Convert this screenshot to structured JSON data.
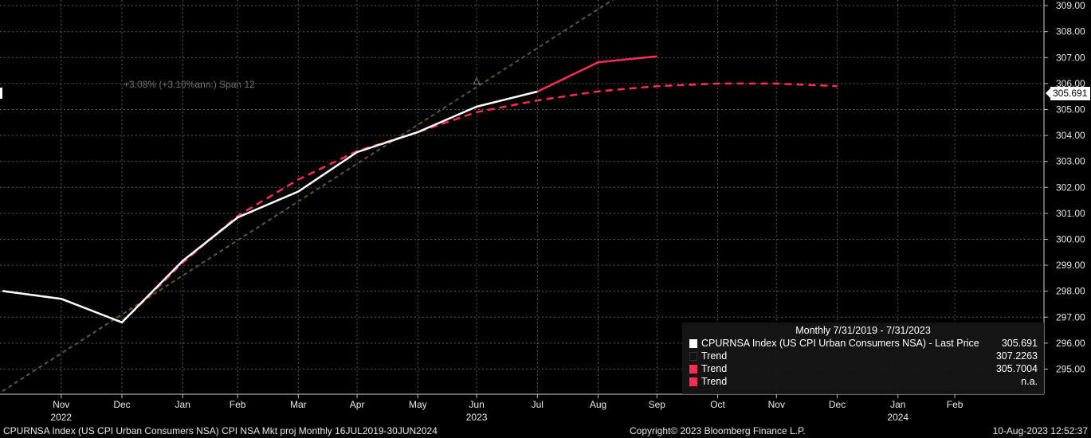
{
  "chart_data": {
    "type": "line",
    "x": [
      "2022-10-31",
      "2022-11-30",
      "2022-12-31",
      "2023-01-31",
      "2023-02-28",
      "2023-03-31",
      "2023-04-30",
      "2023-05-31",
      "2023-06-30",
      "2023-07-31",
      "2023-08-31",
      "2023-09-30",
      "2023-10-31",
      "2023-11-30",
      "2023-12-31"
    ],
    "x_ticks": [
      {
        "month": "Nov",
        "year": "2022"
      },
      {
        "month": "Dec",
        "year": ""
      },
      {
        "month": "Jan",
        "year": ""
      },
      {
        "month": "Feb",
        "year": ""
      },
      {
        "month": "Mar",
        "year": ""
      },
      {
        "month": "Apr",
        "year": ""
      },
      {
        "month": "May",
        "year": ""
      },
      {
        "month": "Jun",
        "year": "2023"
      },
      {
        "month": "Jul",
        "year": ""
      },
      {
        "month": "Aug",
        "year": ""
      },
      {
        "month": "Sep",
        "year": ""
      },
      {
        "month": "Oct",
        "year": ""
      },
      {
        "month": "Nov",
        "year": ""
      },
      {
        "month": "Dec",
        "year": ""
      },
      {
        "month": "Jan",
        "year": "2024"
      },
      {
        "month": "Feb",
        "year": ""
      }
    ],
    "y_ticks": [
      "295.00",
      "296.00",
      "297.00",
      "298.00",
      "299.00",
      "300.00",
      "301.00",
      "302.00",
      "303.00",
      "304.00",
      "305.00",
      "306.00",
      "307.00",
      "308.00",
      "309.00"
    ],
    "ylim": [
      294,
      309.5
    ],
    "series": [
      {
        "name": "CPURNSA Index (US CPI Urban Consumers NSA) - Last Price",
        "color": "#ffffff",
        "style": "solid",
        "x": [
          "2022-10-31",
          "2022-11-30",
          "2022-12-31",
          "2023-01-31",
          "2023-02-28",
          "2023-03-31",
          "2023-04-30",
          "2023-05-31",
          "2023-06-30",
          "2023-07-31"
        ],
        "values": [
          298.01,
          297.71,
          296.8,
          299.17,
          300.84,
          301.84,
          303.36,
          304.13,
          305.11,
          305.69
        ]
      },
      {
        "name": "Trend",
        "color": "#5a5a28",
        "style": "dotted",
        "x": [
          "2022-10-31",
          "2023-09-09"
        ],
        "values": [
          294.15,
          309.3
        ]
      },
      {
        "name": "Trend",
        "color": "#ff2d55",
        "style": "solid",
        "x": [
          "2023-07-31",
          "2023-08-31",
          "2023-09-30"
        ],
        "values": [
          305.69,
          306.82,
          307.05
        ]
      },
      {
        "name": "Trend",
        "color": "#ff2d55",
        "style": "dashed",
        "x": [
          "2022-12-31",
          "2023-01-31",
          "2023-02-28",
          "2023-03-31",
          "2023-04-30",
          "2023-05-31",
          "2023-06-30",
          "2023-07-31",
          "2023-08-31",
          "2023-09-30",
          "2023-10-31",
          "2023-11-30",
          "2023-12-31"
        ],
        "values": [
          296.8,
          299.1,
          300.9,
          302.3,
          303.4,
          304.13,
          304.9,
          305.35,
          305.7,
          305.9,
          306.0,
          306.0,
          305.9
        ]
      }
    ],
    "last_price_tag": "305.691",
    "annotation": "+3.08% (+3.10%ann.) Span 12",
    "grid": true
  },
  "legend": {
    "header": "Monthly 7/31/2019 - 7/31/2023",
    "items": [
      {
        "label": "CPURNSA Index (US CPI Urban Consumers NSA) - Last Price",
        "value": "305.691",
        "color": "#ffffff"
      },
      {
        "label": "Trend",
        "value": "307.2263",
        "color": "#111111"
      },
      {
        "label": "Trend",
        "value": "305.7004",
        "color": "#ff2d55"
      },
      {
        "label": "Trend",
        "value": "n.a.",
        "color": "#ff2d55"
      }
    ]
  },
  "footer": {
    "left": "CPURNSA Index (US CPI Urban Consumers NSA) CPI NSA Mkt proj  Monthly 16JUL2019-30JUN2024",
    "center": "Copyright© 2023 Bloomberg Finance L.P.",
    "right": "10-Aug-2023 12:52:37"
  }
}
